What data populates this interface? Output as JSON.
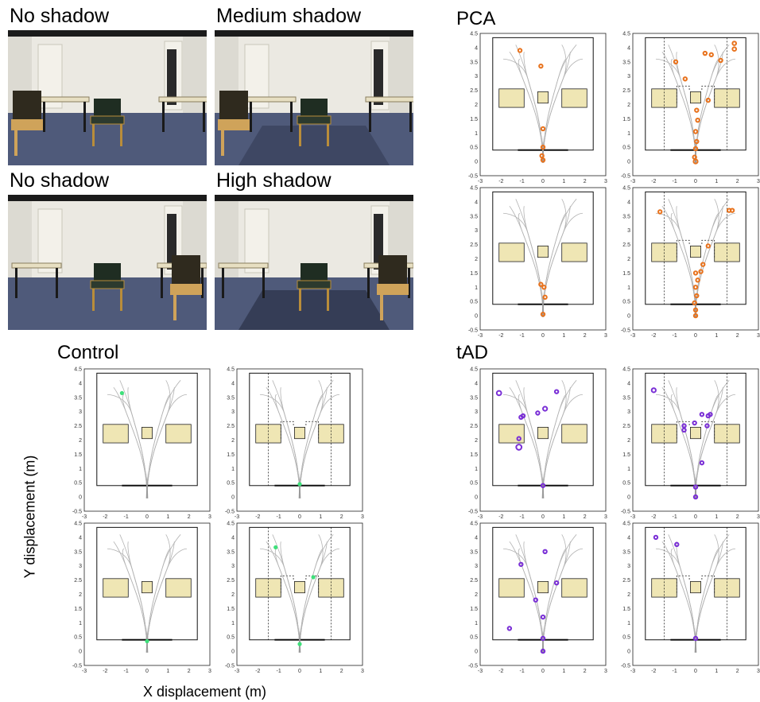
{
  "photos": [
    {
      "title": "No shadow",
      "shadow_level": "none",
      "armchair_side": "left"
    },
    {
      "title": "Medium shadow",
      "shadow_level": "medium",
      "armchair_side": "left"
    },
    {
      "title": "No shadow",
      "shadow_level": "none",
      "armchair_side": "right"
    },
    {
      "title": "High shadow",
      "shadow_level": "high",
      "armchair_side": "right"
    }
  ],
  "groups": {
    "control": {
      "title": "Control",
      "marker_color": "#3ee07a"
    },
    "pca": {
      "title": "PCA",
      "marker_color": "#e8731e"
    },
    "tad": {
      "title": "tAD",
      "marker_color": "#7a2fd6"
    }
  },
  "axes": {
    "xlabel": "X displacement (m)",
    "ylabel": "Y displacement (m)",
    "xlim": [
      -3,
      3
    ],
    "ylim": [
      -0.5,
      4.5
    ],
    "xticks": [
      "-3",
      "-2",
      "-1",
      "0",
      "1",
      "2",
      "3"
    ],
    "yticks": [
      "-0.5",
      "0",
      "0.5",
      "1",
      "1.5",
      "2",
      "2.5",
      "3",
      "3.5",
      "4",
      "4.5"
    ]
  },
  "colors": {
    "obstacle_fill": "#efe6b4",
    "trajectory": "#9a9a9a",
    "floor": "#4f5a7a",
    "wall": "#e9e7df"
  },
  "chart_data": {
    "type": "scatter",
    "xlabel": "X displacement (m)",
    "ylabel": "Y displacement (m)",
    "xlim": [
      -3,
      3
    ],
    "ylim": [
      -0.5,
      4.5
    ],
    "panels": [
      {
        "group": "control",
        "row": 0,
        "col": 0,
        "shadow": false,
        "events": [
          {
            "x": -1.2,
            "y": 3.65,
            "r": 0.06
          }
        ]
      },
      {
        "group": "control",
        "row": 0,
        "col": 1,
        "shadow": true,
        "events": [
          {
            "x": 0.0,
            "y": 0.45,
            "r": 0.06
          }
        ]
      },
      {
        "group": "control",
        "row": 1,
        "col": 0,
        "shadow": false,
        "events": [
          {
            "x": 0.0,
            "y": 0.35,
            "r": 0.06
          }
        ]
      },
      {
        "group": "control",
        "row": 1,
        "col": 1,
        "shadow": true,
        "events": [
          {
            "x": -1.15,
            "y": 3.65,
            "r": 0.06
          },
          {
            "x": 0.65,
            "y": 2.6,
            "r": 0.06
          },
          {
            "x": 0.0,
            "y": 0.25,
            "r": 0.06
          }
        ]
      },
      {
        "group": "pca",
        "row": 0,
        "col": 0,
        "shadow": false,
        "events": [
          {
            "x": -1.1,
            "y": 3.9,
            "r": 0.08
          },
          {
            "x": -0.1,
            "y": 3.35,
            "r": 0.07
          },
          {
            "x": 0.0,
            "y": 1.15,
            "r": 0.07
          },
          {
            "x": 0.0,
            "y": 0.5,
            "r": 0.07
          },
          {
            "x": -0.05,
            "y": 0.2,
            "r": 0.07
          },
          {
            "x": 0.0,
            "y": 0.05,
            "r": 0.07
          }
        ]
      },
      {
        "group": "pca",
        "row": 0,
        "col": 1,
        "shadow": true,
        "events": [
          {
            "x": -0.95,
            "y": 3.5,
            "r": 0.07
          },
          {
            "x": 0.45,
            "y": 3.8,
            "r": 0.07
          },
          {
            "x": 0.75,
            "y": 3.75,
            "r": 0.07
          },
          {
            "x": 1.2,
            "y": 3.55,
            "r": 0.07
          },
          {
            "x": 1.85,
            "y": 4.15,
            "r": 0.09
          },
          {
            "x": 1.85,
            "y": 3.95,
            "r": 0.09
          },
          {
            "x": -0.5,
            "y": 2.9,
            "r": 0.07
          },
          {
            "x": 0.6,
            "y": 2.15,
            "r": 0.07
          },
          {
            "x": 0.05,
            "y": 1.8,
            "r": 0.07
          },
          {
            "x": 0.1,
            "y": 1.45,
            "r": 0.07
          },
          {
            "x": 0.0,
            "y": 1.05,
            "r": 0.08
          },
          {
            "x": 0.05,
            "y": 0.7,
            "r": 0.07
          },
          {
            "x": 0.0,
            "y": 0.45,
            "r": 0.07
          },
          {
            "x": -0.05,
            "y": 0.15,
            "r": 0.08
          },
          {
            "x": 0.0,
            "y": 0.0,
            "r": 0.1
          }
        ]
      },
      {
        "group": "pca",
        "row": 1,
        "col": 0,
        "shadow": false,
        "events": [
          {
            "x": -0.1,
            "y": 1.1,
            "r": 0.07
          },
          {
            "x": 0.05,
            "y": 1.0,
            "r": 0.07
          },
          {
            "x": 0.1,
            "y": 0.65,
            "r": 0.07
          },
          {
            "x": 0.0,
            "y": 0.05,
            "r": 0.07
          }
        ]
      },
      {
        "group": "pca",
        "row": 1,
        "col": 1,
        "shadow": true,
        "events": [
          {
            "x": -1.7,
            "y": 3.65,
            "r": 0.07
          },
          {
            "x": 1.6,
            "y": 3.7,
            "r": 0.07
          },
          {
            "x": 1.75,
            "y": 3.7,
            "r": 0.07
          },
          {
            "x": 0.6,
            "y": 2.45,
            "r": 0.07
          },
          {
            "x": 0.35,
            "y": 1.8,
            "r": 0.07
          },
          {
            "x": 0.25,
            "y": 1.55,
            "r": 0.07
          },
          {
            "x": 0.0,
            "y": 1.5,
            "r": 0.08
          },
          {
            "x": 0.1,
            "y": 1.25,
            "r": 0.08
          },
          {
            "x": 0.0,
            "y": 1.0,
            "r": 0.08
          },
          {
            "x": 0.05,
            "y": 0.7,
            "r": 0.07
          },
          {
            "x": -0.05,
            "y": 0.45,
            "r": 0.07
          },
          {
            "x": 0.0,
            "y": 0.2,
            "r": 0.07
          },
          {
            "x": 0.0,
            "y": 0.0,
            "r": 0.07
          }
        ]
      },
      {
        "group": "tad",
        "row": 0,
        "col": 0,
        "shadow": false,
        "events": [
          {
            "x": -2.1,
            "y": 3.65,
            "r": 0.11
          },
          {
            "x": 0.65,
            "y": 3.7,
            "r": 0.07
          },
          {
            "x": -0.95,
            "y": 2.85,
            "r": 0.08
          },
          {
            "x": -1.05,
            "y": 2.8,
            "r": 0.07
          },
          {
            "x": -0.25,
            "y": 2.95,
            "r": 0.07
          },
          {
            "x": 0.1,
            "y": 3.1,
            "r": 0.1
          },
          {
            "x": -1.15,
            "y": 2.05,
            "r": 0.08
          },
          {
            "x": -1.15,
            "y": 1.75,
            "r": 0.13
          },
          {
            "x": 0.0,
            "y": 0.4,
            "r": 0.06
          }
        ]
      },
      {
        "group": "tad",
        "row": 0,
        "col": 1,
        "shadow": true,
        "events": [
          {
            "x": -2.0,
            "y": 3.75,
            "r": 0.1
          },
          {
            "x": 0.7,
            "y": 2.9,
            "r": 0.07
          },
          {
            "x": 0.6,
            "y": 2.85,
            "r": 0.07
          },
          {
            "x": 0.3,
            "y": 2.9,
            "r": 0.07
          },
          {
            "x": -0.05,
            "y": 2.6,
            "r": 0.07
          },
          {
            "x": -0.55,
            "y": 2.5,
            "r": 0.07
          },
          {
            "x": -0.55,
            "y": 2.35,
            "r": 0.07
          },
          {
            "x": 0.55,
            "y": 2.5,
            "r": 0.07
          },
          {
            "x": 0.3,
            "y": 1.2,
            "r": 0.06
          },
          {
            "x": 0.0,
            "y": 0.35,
            "r": 0.06
          },
          {
            "x": 0.0,
            "y": 0.0,
            "r": 0.06
          }
        ]
      },
      {
        "group": "tad",
        "row": 1,
        "col": 0,
        "shadow": false,
        "events": [
          {
            "x": -1.05,
            "y": 3.05,
            "r": 0.07
          },
          {
            "x": 0.1,
            "y": 3.5,
            "r": 0.06
          },
          {
            "x": 0.65,
            "y": 2.4,
            "r": 0.06
          },
          {
            "x": -0.35,
            "y": 1.8,
            "r": 0.06
          },
          {
            "x": 0.0,
            "y": 1.2,
            "r": 0.07
          },
          {
            "x": -1.6,
            "y": 0.8,
            "r": 0.07
          },
          {
            "x": 0.0,
            "y": 0.45,
            "r": 0.06
          },
          {
            "x": 0.0,
            "y": 0.0,
            "r": 0.06
          }
        ]
      },
      {
        "group": "tad",
        "row": 1,
        "col": 1,
        "shadow": true,
        "events": [
          {
            "x": -1.9,
            "y": 4.0,
            "r": 0.07
          },
          {
            "x": -0.9,
            "y": 3.75,
            "r": 0.06
          },
          {
            "x": 0.0,
            "y": 0.45,
            "r": 0.06
          }
        ]
      }
    ]
  }
}
